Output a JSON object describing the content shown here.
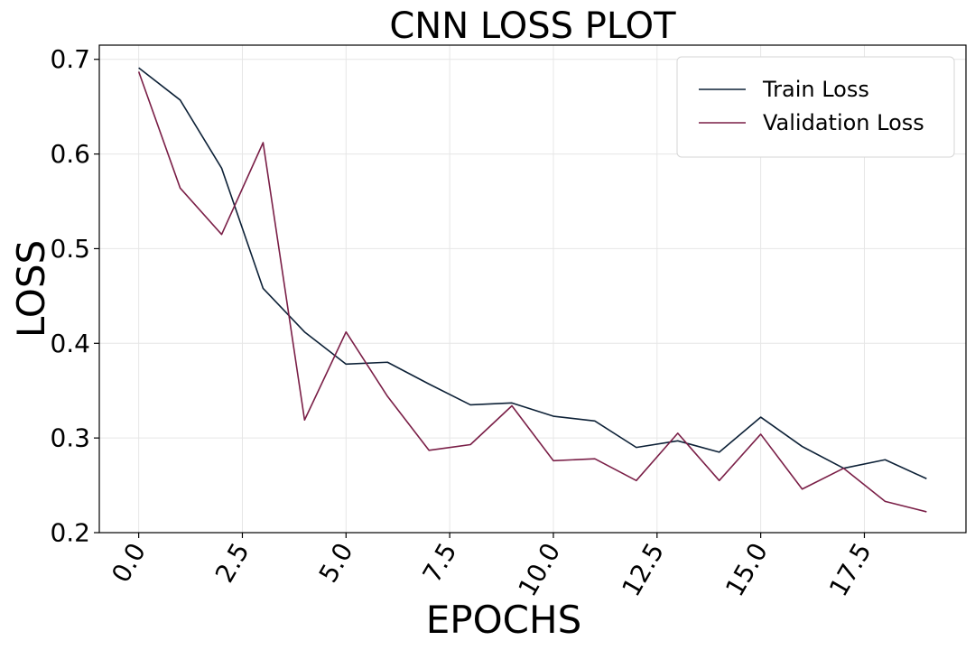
{
  "chart_data": {
    "type": "line",
    "title": "CNN LOSS PLOT",
    "xlabel": "EPOCHS",
    "ylabel": "LOSS",
    "x": [
      0,
      1,
      2,
      3,
      4,
      5,
      6,
      7,
      8,
      9,
      10,
      11,
      12,
      13,
      14,
      15,
      16,
      17,
      18,
      19
    ],
    "xlim": [
      -0.95,
      19.95
    ],
    "ylim": [
      0.2,
      0.715
    ],
    "xticks": [
      0.0,
      2.5,
      5.0,
      7.5,
      10.0,
      12.5,
      15.0,
      17.5
    ],
    "xtick_labels": [
      "0.0",
      "2.5",
      "5.0",
      "7.5",
      "10.0",
      "12.5",
      "15.0",
      "17.5"
    ],
    "yticks": [
      0.2,
      0.3,
      0.4,
      0.5,
      0.6,
      0.7
    ],
    "ytick_labels": [
      "0.2",
      "0.3",
      "0.4",
      "0.5",
      "0.6",
      "0.7"
    ],
    "grid": true,
    "legend_position": "top-right",
    "series": [
      {
        "name": "Train Loss",
        "color": "#0d2137",
        "values": [
          0.691,
          0.657,
          0.585,
          0.458,
          0.412,
          0.378,
          0.38,
          0.357,
          0.335,
          0.337,
          0.323,
          0.318,
          0.29,
          0.297,
          0.285,
          0.322,
          0.291,
          0.268,
          0.277,
          0.257
        ]
      },
      {
        "name": "Validation Loss",
        "color": "#7a1f47",
        "values": [
          0.687,
          0.564,
          0.515,
          0.612,
          0.319,
          0.412,
          0.344,
          0.287,
          0.293,
          0.334,
          0.276,
          0.278,
          0.255,
          0.305,
          0.255,
          0.304,
          0.246,
          0.268,
          0.233,
          0.222
        ]
      }
    ]
  }
}
